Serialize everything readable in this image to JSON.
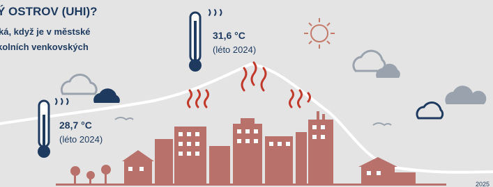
{
  "header": {
    "title": "Ý OSTROV (UHI)?",
    "lines": [
      "ká, když je v městské",
      "kolních venkovských"
    ]
  },
  "readings": [
    {
      "temp": "31,6 °C",
      "season": "(léto 2024)"
    },
    {
      "temp": "28,7 °C",
      "season": "(léto 2024)"
    }
  ],
  "footer": {
    "year": "2025"
  }
}
